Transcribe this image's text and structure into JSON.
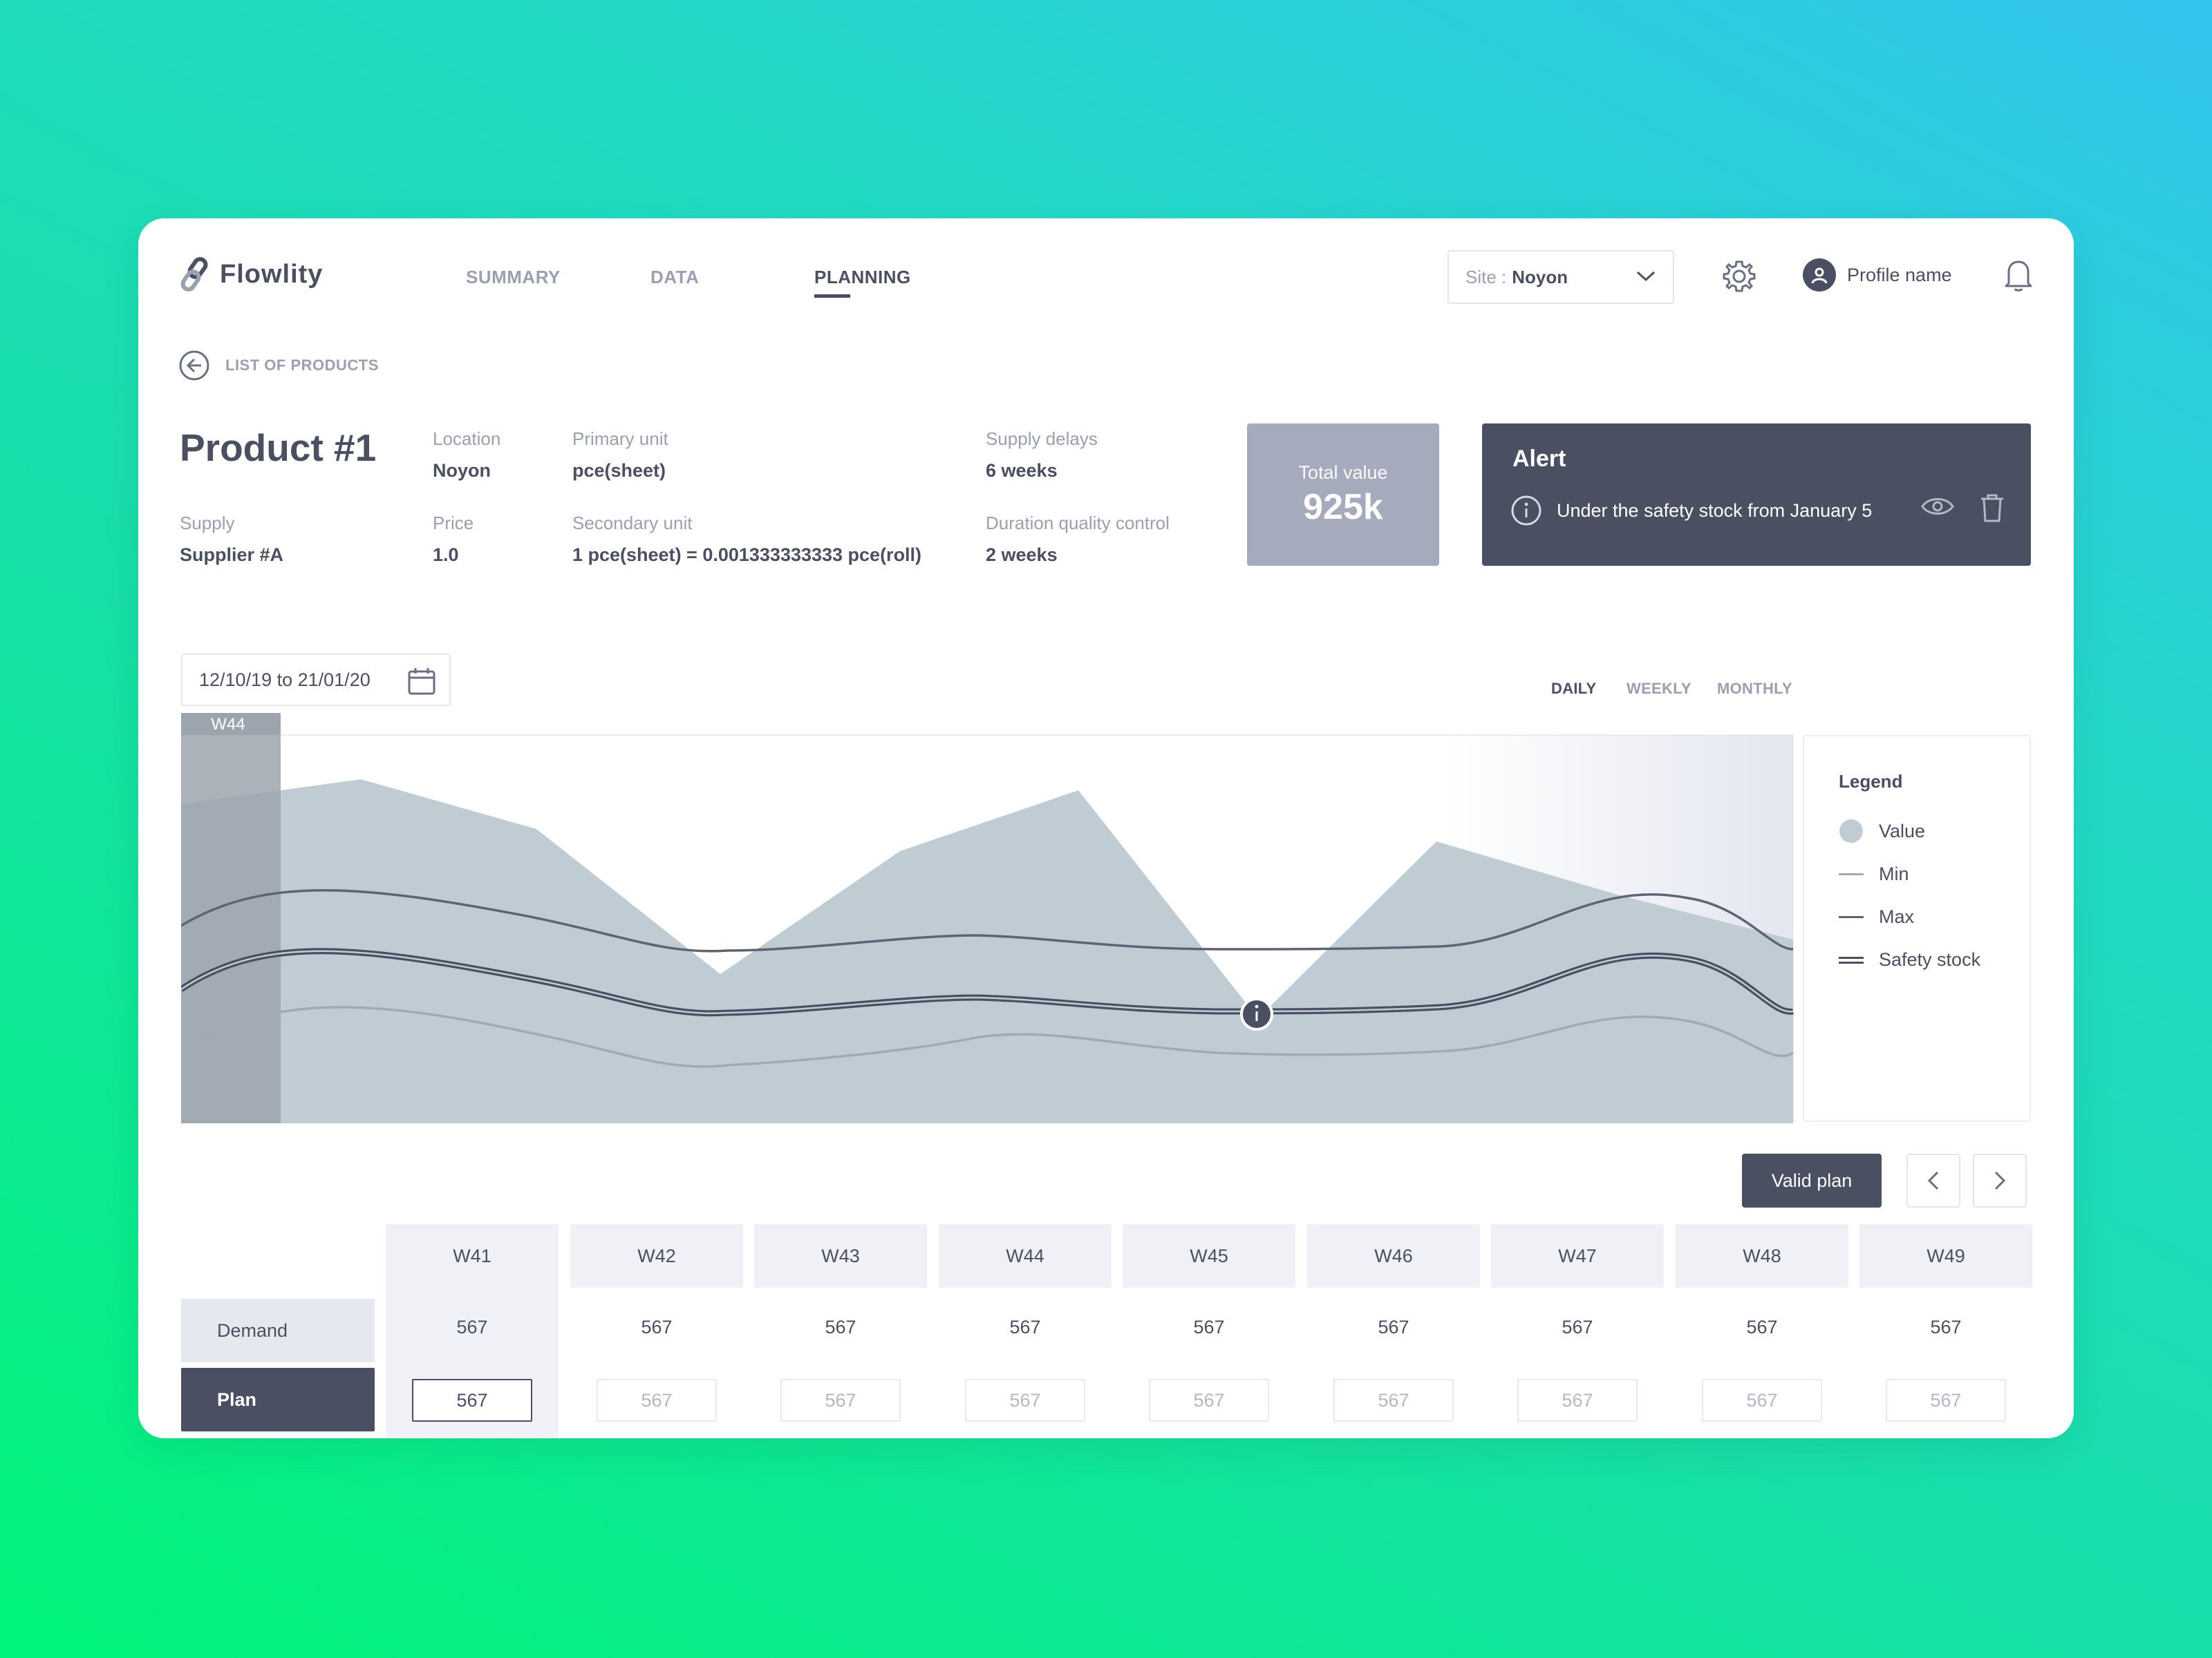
{
  "app": {
    "name": "Flowlity"
  },
  "nav": {
    "items": [
      "SUMMARY",
      "DATA",
      "PLANNING"
    ],
    "active": "PLANNING"
  },
  "site": {
    "label": "Site :",
    "value": "Noyon"
  },
  "profile": {
    "name": "Profile name"
  },
  "back": {
    "label": "LIST OF PRODUCTS"
  },
  "product": {
    "title": "Product #1",
    "location": {
      "label": "Location",
      "value": "Noyon"
    },
    "primary_unit": {
      "label": "Primary unit",
      "value": "pce(sheet)"
    },
    "supply_delays": {
      "label": "Supply delays",
      "value": "6 weeks"
    },
    "supply": {
      "label": "Supply",
      "value": "Supplier #A"
    },
    "price": {
      "label": "Price",
      "value": "1.0"
    },
    "secondary_unit": {
      "label": "Secondary unit",
      "value": "1 pce(sheet) = 0.001333333333 pce(roll)"
    },
    "duration_qc": {
      "label": "Duration quality control",
      "value": "2 weeks"
    }
  },
  "total": {
    "label": "Total value",
    "value": "925k"
  },
  "alert": {
    "title": "Alert",
    "message": "Under the safety stock from January 5"
  },
  "date_range": {
    "value": "12/10/19 to 21/01/20"
  },
  "period": {
    "options": [
      "DAILY",
      "WEEKLY",
      "MONTHLY"
    ],
    "active": "DAILY"
  },
  "chart_data": {
    "type": "area",
    "highlight_label": "W44",
    "legend_title": "Legend",
    "series": [
      {
        "name": "Value",
        "kind": "area",
        "color": "#c0ccd3"
      },
      {
        "name": "Min",
        "kind": "line",
        "color": "#a2a8b8"
      },
      {
        "name": "Max",
        "kind": "line",
        "color": "#5e6476"
      },
      {
        "name": "Safety stock",
        "kind": "double-line",
        "color": "#4a5062"
      }
    ],
    "colors": {
      "area": "#c0ccd3",
      "highlight": "#9ca5ad",
      "line_dark": "#4a5062"
    }
  },
  "actions": {
    "valid_plan": "Valid plan"
  },
  "table": {
    "weeks": [
      "W41",
      "W42",
      "W43",
      "W44",
      "W45",
      "W46",
      "W47",
      "W48",
      "W49"
    ],
    "active_week": "W41",
    "demand_label": "Demand",
    "plan_label": "Plan",
    "demand": [
      "567",
      "567",
      "567",
      "567",
      "567",
      "567",
      "567",
      "567",
      "567"
    ],
    "plan": [
      "567",
      "567",
      "567",
      "567",
      "567",
      "567",
      "567",
      "567",
      "567"
    ]
  },
  "colors": {
    "primary_dark": "#4a5062",
    "muted": "#9aa0b0",
    "header_bg": "#eff1f7"
  }
}
